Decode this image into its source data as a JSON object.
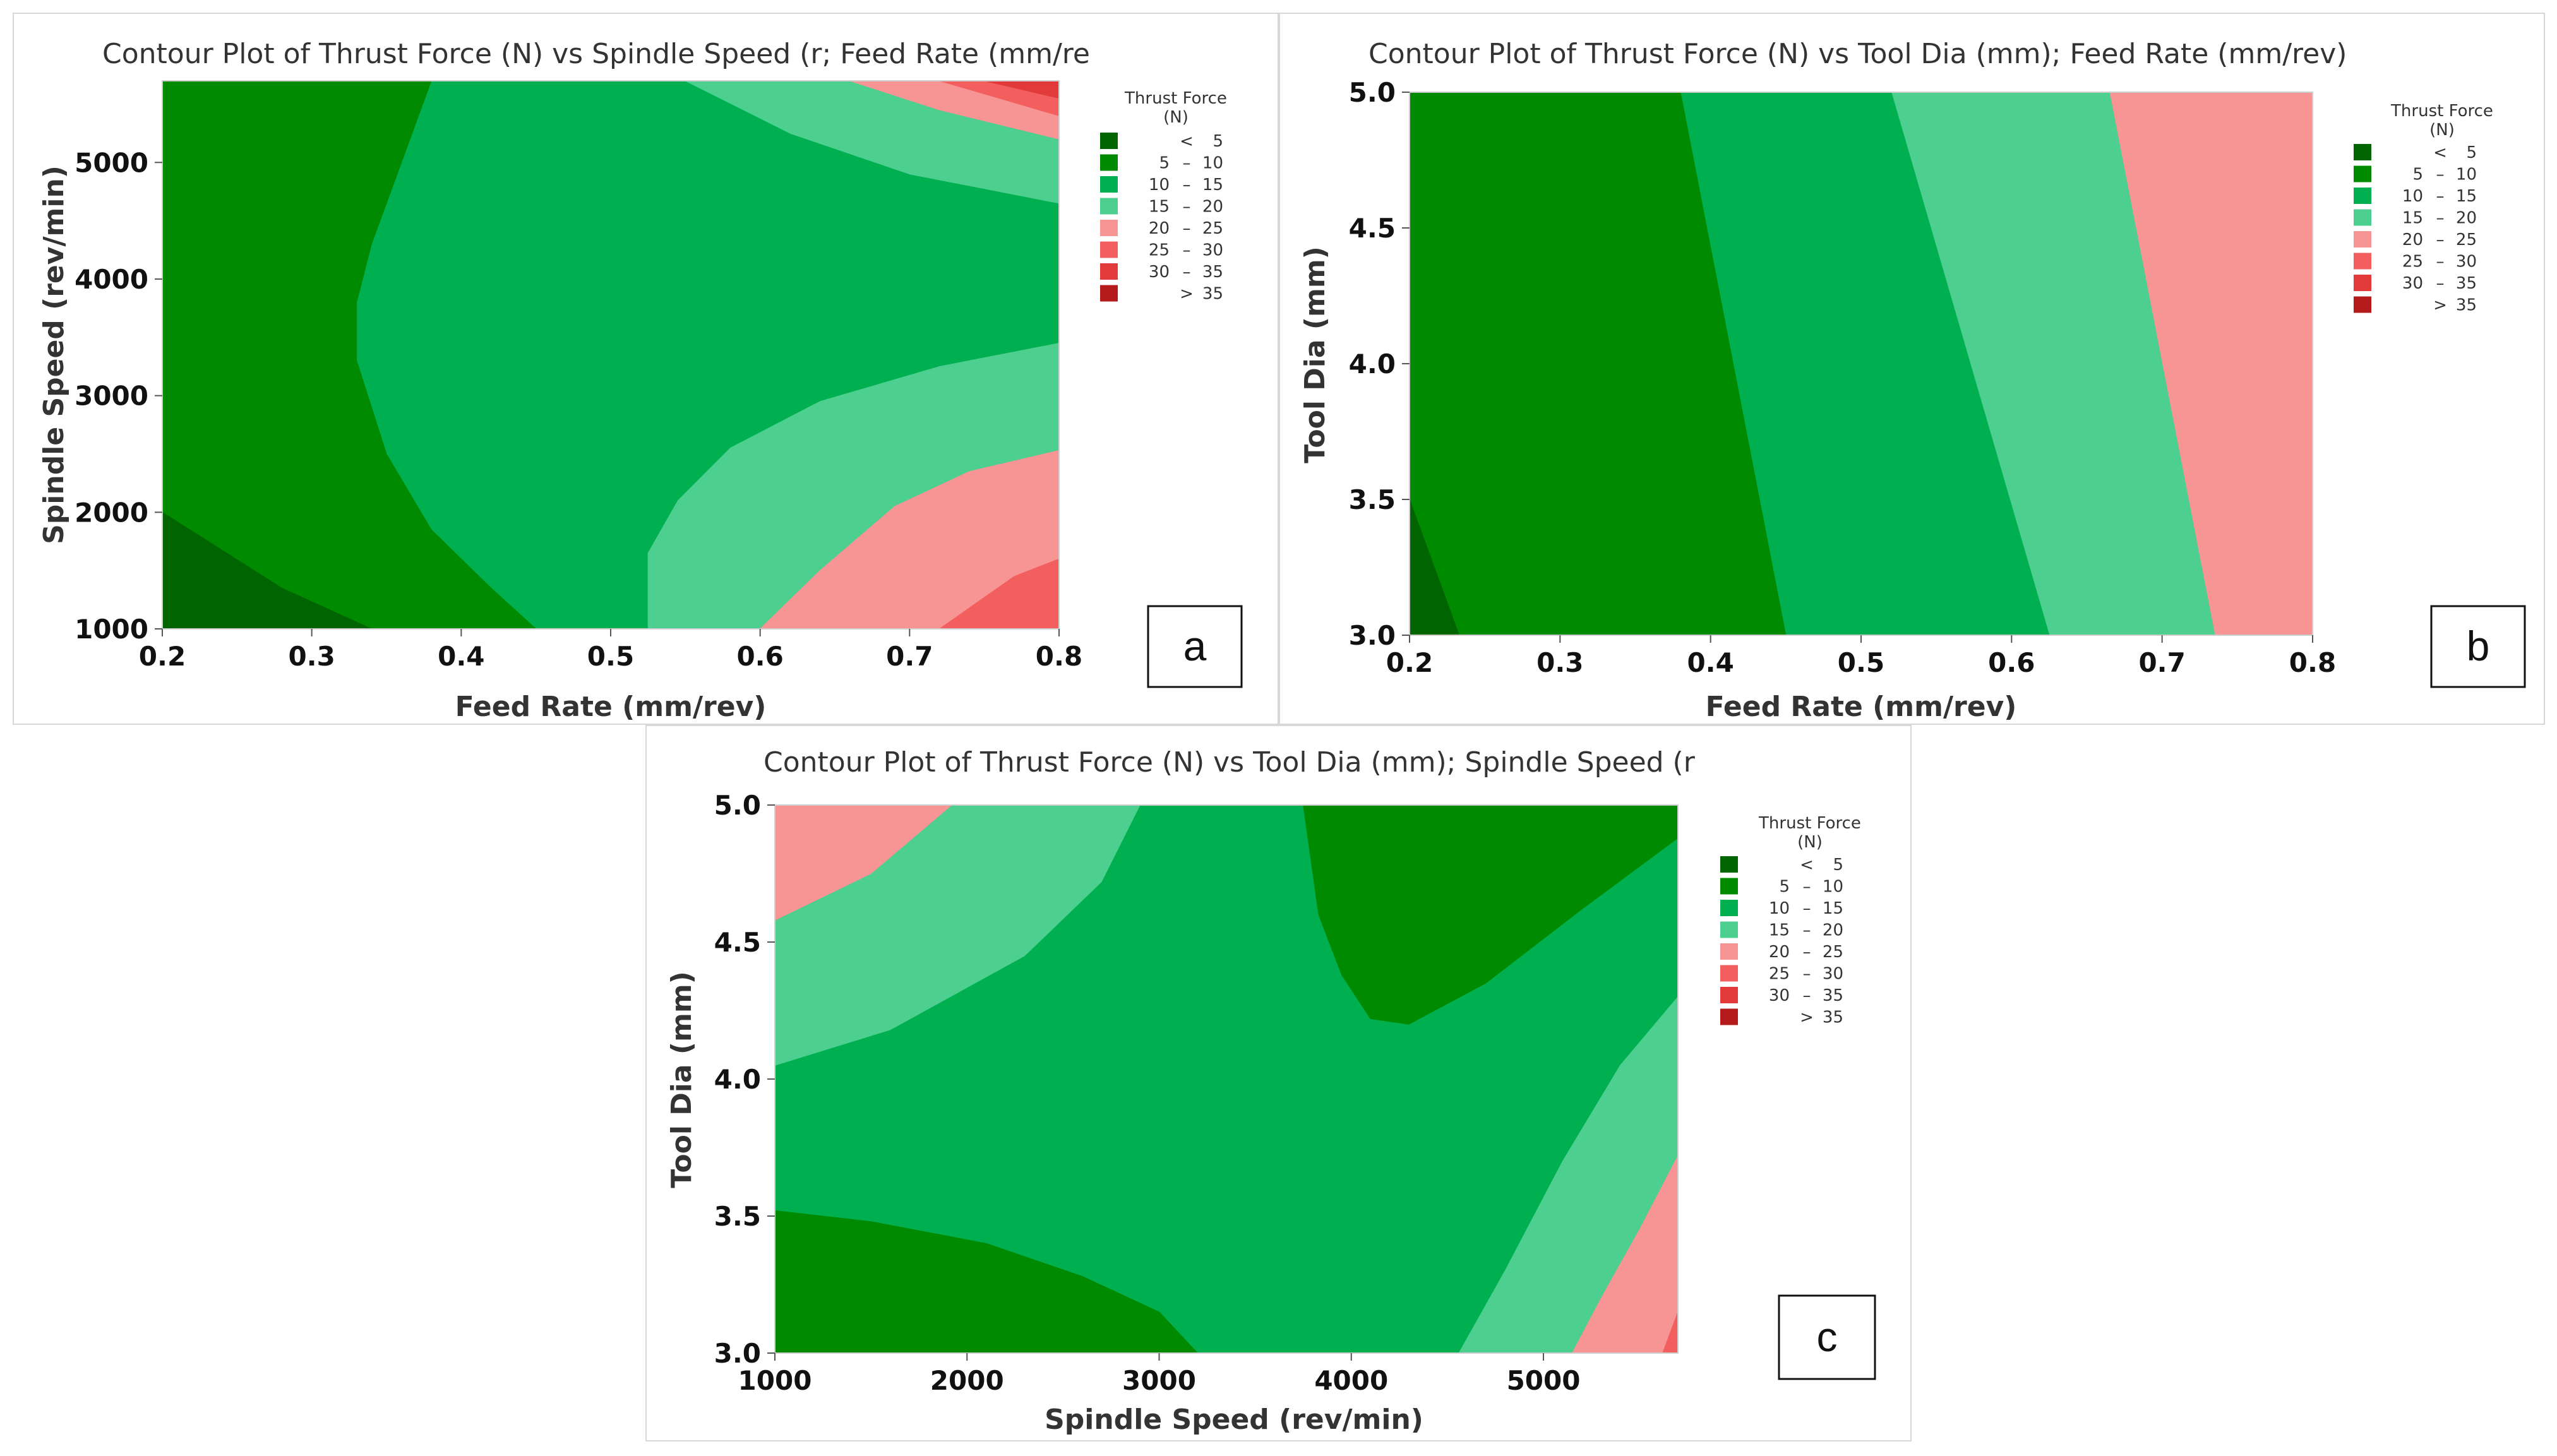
{
  "legend": {
    "title_line1": "Thrust Force",
    "title_line2": "(N)",
    "items": [
      {
        "op": "<",
        "lo": "",
        "hi": "5",
        "color": "#006400"
      },
      {
        "op": "–",
        "lo": "5",
        "hi": "10",
        "color": "#008a00"
      },
      {
        "op": "–",
        "lo": "10",
        "hi": "15",
        "color": "#00b050"
      },
      {
        "op": "–",
        "lo": "15",
        "hi": "20",
        "color": "#4ccf8f"
      },
      {
        "op": "–",
        "lo": "20",
        "hi": "25",
        "color": "#f79494"
      },
      {
        "op": "–",
        "lo": "25",
        "hi": "30",
        "color": "#f35f5f"
      },
      {
        "op": "–",
        "lo": "30",
        "hi": "35",
        "color": "#e23a3a"
      },
      {
        "op": ">",
        "lo": "",
        "hi": "35",
        "color": "#b51a1a"
      }
    ]
  },
  "chart_data": [
    {
      "type": "contour",
      "panel_letter": "a",
      "title": "Contour Plot of Thrust Force (N) vs Spindle Speed (r; Feed Rate (mm/re",
      "xlabel": "Feed Rate (mm/rev)",
      "ylabel": "Spindle Speed (rev/min)",
      "xlim": [
        0.2,
        0.8
      ],
      "ylim": [
        1000,
        5700
      ],
      "xticks": [
        "0.2",
        "0.3",
        "0.4",
        "0.5",
        "0.6",
        "0.7",
        "0.8"
      ],
      "xtick_values": [
        0.2,
        0.3,
        0.4,
        0.5,
        0.6,
        0.7,
        0.8
      ],
      "yticks": [
        "1000",
        "2000",
        "3000",
        "4000",
        "5000"
      ],
      "ytick_values": [
        1000,
        2000,
        3000,
        4000,
        5000
      ],
      "regions": [
        {
          "level": "15 - 20",
          "color": "#4ccf8f",
          "points": [
            [
              0.525,
              1000
            ],
            [
              0.8,
              1000
            ],
            [
              0.8,
              3450
            ],
            [
              0.72,
              3250
            ],
            [
              0.64,
              2950
            ],
            [
              0.58,
              2550
            ],
            [
              0.545,
              2100
            ],
            [
              0.525,
              1650
            ]
          ]
        },
        {
          "level": "20 - 25",
          "color": "#f79494",
          "points": [
            [
              0.6,
              1000
            ],
            [
              0.8,
              1000
            ],
            [
              0.8,
              2530
            ],
            [
              0.74,
              2350
            ],
            [
              0.69,
              2050
            ],
            [
              0.64,
              1500
            ]
          ]
        },
        {
          "level": "25 - 30",
          "color": "#f35f5f",
          "points": [
            [
              0.72,
              1000
            ],
            [
              0.8,
              1000
            ],
            [
              0.8,
              1600
            ],
            [
              0.77,
              1450
            ]
          ]
        },
        {
          "level": "15 - 20",
          "color": "#4ccf8f",
          "points": [
            [
              0.55,
              5700
            ],
            [
              0.8,
              5700
            ],
            [
              0.8,
              4650
            ],
            [
              0.7,
              4900
            ],
            [
              0.62,
              5250
            ]
          ]
        },
        {
          "level": "20 - 25",
          "color": "#f79494",
          "points": [
            [
              0.66,
              5700
            ],
            [
              0.8,
              5700
            ],
            [
              0.8,
              5200
            ],
            [
              0.72,
              5450
            ]
          ]
        },
        {
          "level": "25 - 30",
          "color": "#f35f5f",
          "points": [
            [
              0.72,
              5700
            ],
            [
              0.8,
              5700
            ],
            [
              0.8,
              5400
            ],
            [
              0.76,
              5550
            ]
          ]
        },
        {
          "level": "30 - 35",
          "color": "#e23a3a",
          "points": [
            [
              0.75,
              5700
            ],
            [
              0.8,
              5700
            ],
            [
              0.8,
              5550
            ]
          ]
        },
        {
          "level": "5 - 10",
          "color": "#008a00",
          "points": [
            [
              0.2,
              1000
            ],
            [
              0.45,
              1000
            ],
            [
              0.42,
              1350
            ],
            [
              0.38,
              1850
            ],
            [
              0.35,
              2500
            ],
            [
              0.33,
              3300
            ],
            [
              0.33,
              3800
            ],
            [
              0.34,
              4300
            ],
            [
              0.36,
              5000
            ],
            [
              0.38,
              5700
            ],
            [
              0.2,
              5700
            ]
          ]
        },
        {
          "level": "< 5",
          "color": "#006400",
          "points": [
            [
              0.2,
              1000
            ],
            [
              0.34,
              1000
            ],
            [
              0.28,
              1350
            ],
            [
              0.2,
              2000
            ]
          ]
        }
      ]
    },
    {
      "type": "contour",
      "panel_letter": "b",
      "title": "Contour Plot of Thrust Force (N) vs Tool Dia (mm); Feed Rate (mm/rev)",
      "xlabel": "Feed Rate (mm/rev)",
      "ylabel": "Tool Dia (mm)",
      "xlim": [
        0.2,
        0.8
      ],
      "ylim": [
        3.0,
        5.0
      ],
      "xticks": [
        "0.2",
        "0.3",
        "0.4",
        "0.5",
        "0.6",
        "0.7",
        "0.8"
      ],
      "xtick_values": [
        0.2,
        0.3,
        0.4,
        0.5,
        0.6,
        0.7,
        0.8
      ],
      "yticks": [
        "3.0",
        "3.5",
        "4.0",
        "4.5",
        "5.0"
      ],
      "ytick_values": [
        3.0,
        3.5,
        4.0,
        4.5,
        5.0
      ],
      "regions": [
        {
          "level": "20 - 25",
          "color": "#f79494",
          "points": [
            [
              0.665,
              5.0
            ],
            [
              0.8,
              5.0
            ],
            [
              0.8,
              3.0
            ],
            [
              0.735,
              3.0
            ]
          ]
        },
        {
          "level": "15 - 20",
          "color": "#4ccf8f",
          "points": [
            [
              0.52,
              5.0
            ],
            [
              0.665,
              5.0
            ],
            [
              0.735,
              3.0
            ],
            [
              0.625,
              3.0
            ]
          ]
        },
        {
          "level": "10 - 15",
          "color": "#00b050",
          "points": [
            [
              0.38,
              5.0
            ],
            [
              0.52,
              5.0
            ],
            [
              0.625,
              3.0
            ],
            [
              0.45,
              3.0
            ]
          ]
        },
        {
          "level": "5 - 10",
          "color": "#008a00",
          "points": [
            [
              0.2,
              5.0
            ],
            [
              0.38,
              5.0
            ],
            [
              0.45,
              3.0
            ],
            [
              0.2,
              3.0
            ]
          ]
        },
        {
          "level": "< 5",
          "color": "#006400",
          "points": [
            [
              0.2,
              3.0
            ],
            [
              0.233,
              3.0
            ],
            [
              0.2,
              3.5
            ]
          ]
        }
      ]
    },
    {
      "type": "contour",
      "panel_letter": "c",
      "title": "Contour Plot of Thrust Force (N) vs Tool Dia (mm); Spindle Speed (r",
      "xlabel": "Spindle Speed (rev/min)",
      "ylabel": "Tool Dia (mm)",
      "xlim": [
        1000,
        5700
      ],
      "ylim": [
        3.0,
        5.0
      ],
      "xticks": [
        "1000",
        "2000",
        "3000",
        "4000",
        "5000"
      ],
      "xtick_values": [
        1000,
        2000,
        3000,
        4000,
        5000
      ],
      "yticks": [
        "3.0",
        "3.5",
        "4.0",
        "4.5",
        "5.0"
      ],
      "ytick_values": [
        3.0,
        3.5,
        4.0,
        4.5,
        5.0
      ],
      "regions": [
        {
          "level": "15 - 20",
          "color": "#4ccf8f",
          "points": [
            [
              1000,
              5.0
            ],
            [
              2900,
              5.0
            ],
            [
              2700,
              4.72
            ],
            [
              2300,
              4.45
            ],
            [
              1600,
              4.18
            ],
            [
              1000,
              4.05
            ]
          ]
        },
        {
          "level": "20 - 25",
          "color": "#f79494",
          "points": [
            [
              1000,
              5.0
            ],
            [
              1920,
              5.0
            ],
            [
              1500,
              4.75
            ],
            [
              1000,
              4.58
            ]
          ]
        },
        {
          "level": "5 - 10",
          "color": "#008a00",
          "points": [
            [
              3750,
              5.0
            ],
            [
              5700,
              5.0
            ],
            [
              5700,
              4.88
            ],
            [
              5200,
              4.62
            ],
            [
              4700,
              4.35
            ],
            [
              4300,
              4.2
            ],
            [
              4100,
              4.22
            ],
            [
              3950,
              4.38
            ],
            [
              3830,
              4.6
            ]
          ]
        },
        {
          "level": "5 - 10",
          "color": "#008a00",
          "points": [
            [
              1000,
              3.0
            ],
            [
              3200,
              3.0
            ],
            [
              3000,
              3.15
            ],
            [
              2600,
              3.28
            ],
            [
              2100,
              3.4
            ],
            [
              1500,
              3.48
            ],
            [
              1000,
              3.52
            ]
          ]
        },
        {
          "level": "15 - 20",
          "color": "#4ccf8f",
          "points": [
            [
              4560,
              3.0
            ],
            [
              5700,
              3.0
            ],
            [
              5700,
              4.3
            ],
            [
              5400,
              4.05
            ],
            [
              5100,
              3.7
            ],
            [
              4800,
              3.3
            ]
          ]
        },
        {
          "level": "20 - 25",
          "color": "#f79494",
          "points": [
            [
              5150,
              3.0
            ],
            [
              5700,
              3.0
            ],
            [
              5700,
              3.72
            ],
            [
              5500,
              3.45
            ],
            [
              5300,
              3.2
            ]
          ]
        },
        {
          "level": "25 - 30",
          "color": "#f35f5f",
          "points": [
            [
              5620,
              3.0
            ],
            [
              5700,
              3.0
            ],
            [
              5700,
              3.15
            ]
          ]
        }
      ]
    }
  ]
}
